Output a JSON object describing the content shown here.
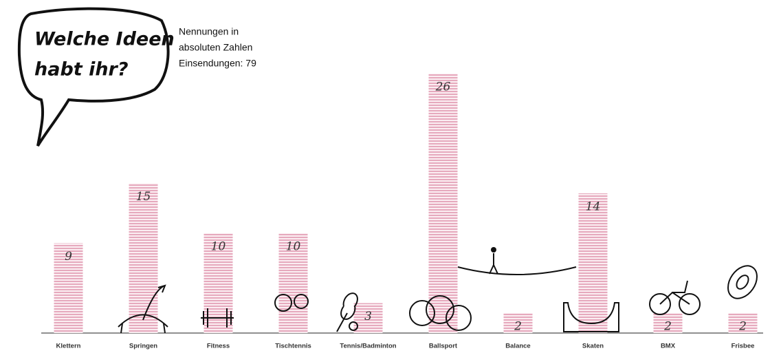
{
  "chart_data": {
    "type": "bar",
    "bubble": [
      "Welche Ideen",
      "habt ihr?"
    ],
    "note": [
      "Nennungen in",
      "absoluten Zahlen",
      "Einsendungen: 79"
    ],
    "categories": [
      "Klettern",
      "Springen",
      "Fitness",
      "Tischtennis",
      "Tennis/Badminton",
      "Ballsport",
      "Balance",
      "Skaten",
      "BMX",
      "Frisbee"
    ],
    "values": [
      9,
      15,
      10,
      10,
      3,
      26,
      2,
      14,
      2,
      2
    ],
    "color": "#e6a9bd"
  }
}
